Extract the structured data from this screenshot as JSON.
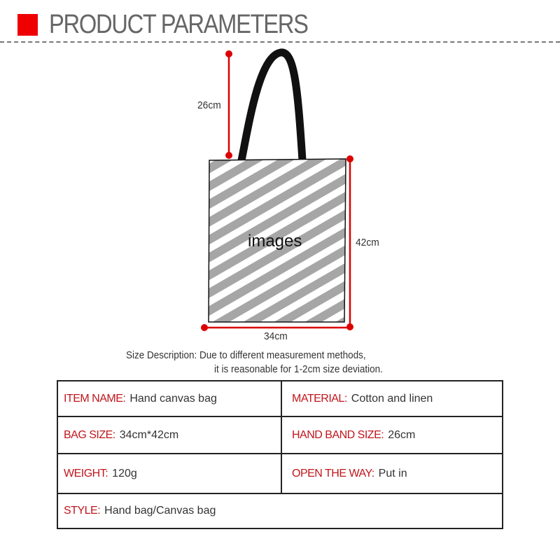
{
  "header": {
    "title": "PRODUCT PARAMETERS",
    "accent_color": "#ee0000"
  },
  "diagram": {
    "placeholder_text": "images",
    "handle_height": "26cm",
    "bag_height": "42cm",
    "bag_width": "34cm",
    "marker_color": "#dd0000"
  },
  "size_description": {
    "line1": "Size Description: Due to different measurement methods,",
    "line2": "it is reasonable for 1-2cm size deviation."
  },
  "specs": {
    "item_name": {
      "label": "ITEM NAME:",
      "value": "Hand canvas bag"
    },
    "material": {
      "label": "MATERIAL:",
      "value": "Cotton and linen"
    },
    "bag_size": {
      "label": "BAG SIZE:",
      "value": "34cm*42cm"
    },
    "hand_band_size": {
      "label": "HAND BAND SIZE:",
      "value": "26cm"
    },
    "weight": {
      "label": "WEIGHT:",
      "value": "120g"
    },
    "open_the_way": {
      "label": "OPEN THE WAY:",
      "value": "Put in"
    },
    "style": {
      "label": "STYLE:",
      "value": "Hand bag/Canvas bag"
    }
  }
}
